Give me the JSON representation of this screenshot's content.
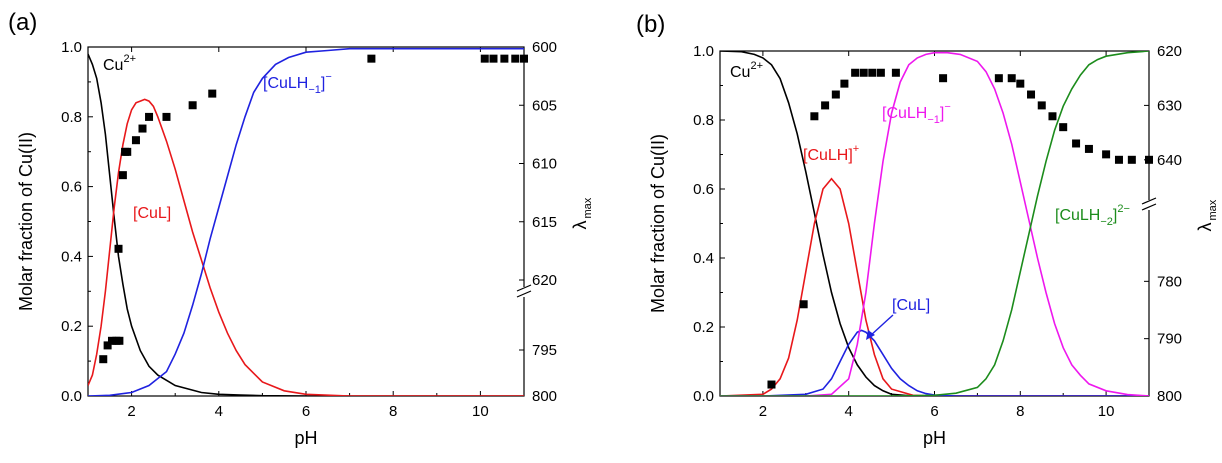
{
  "colors": {
    "black": "#000000",
    "red": "#e8181b",
    "blue": "#1f22e0",
    "magenta": "#ee18ee",
    "green": "#1c8c1c"
  },
  "panel_labels": [
    "(a)",
    "(b)"
  ],
  "chart_data": [
    {
      "type": "line",
      "panel": "(a)",
      "xlabel": "pH",
      "ylabel": "Molar fraction of Cu(II)",
      "y2label": {
        "main": "λ",
        "sub": "max"
      },
      "xlim": [
        1,
        11
      ],
      "ylim": [
        0,
        1
      ],
      "xticks": [
        "2",
        "4",
        "6",
        "8",
        "10"
      ],
      "yticks": [
        "0.0",
        "0.2",
        "0.4",
        "0.6",
        "0.8",
        "1.0"
      ],
      "y2_axis_broken": true,
      "y2_upper_range": [
        600,
        620
      ],
      "y2_upper_ticks": [
        "600",
        "605",
        "610",
        "615",
        "620"
      ],
      "y2_lower_range": [
        790,
        800
      ],
      "y2_lower_ticks": [
        "795",
        "800"
      ],
      "species_labels": [
        {
          "base": "Cu",
          "sup": "2+",
          "sub": "",
          "tail": "",
          "color": "black"
        },
        {
          "base": "[CuL]",
          "sup": "",
          "sub": "",
          "tail": "",
          "color": "red"
        },
        {
          "base": "[CuLH",
          "sub": "−1",
          "tail": "]",
          "sup": "−",
          "color": "blue"
        }
      ],
      "series": [
        {
          "color": "black",
          "x": [
            1,
            1.1,
            1.2,
            1.3,
            1.4,
            1.5,
            1.6,
            1.7,
            1.8,
            1.9,
            2,
            2.2,
            2.4,
            2.6,
            2.8,
            3,
            3.3,
            3.6,
            4,
            4.5,
            5,
            6,
            7,
            8,
            9,
            10,
            11
          ],
          "y": [
            0.98,
            0.95,
            0.91,
            0.84,
            0.75,
            0.63,
            0.51,
            0.4,
            0.32,
            0.25,
            0.2,
            0.13,
            0.085,
            0.06,
            0.045,
            0.03,
            0.02,
            0.01,
            0.005,
            0.003,
            0.001,
            0,
            0,
            0,
            0,
            0,
            0
          ]
        },
        {
          "color": "red",
          "x": [
            1,
            1.1,
            1.2,
            1.3,
            1.4,
            1.5,
            1.6,
            1.7,
            1.8,
            1.9,
            2,
            2.1,
            2.2,
            2.3,
            2.4,
            2.5,
            2.6,
            2.8,
            3,
            3.2,
            3.4,
            3.6,
            3.8,
            4,
            4.2,
            4.4,
            4.6,
            5,
            5.5,
            6,
            7,
            8,
            9,
            10,
            11
          ],
          "y": [
            0.03,
            0.06,
            0.12,
            0.2,
            0.3,
            0.42,
            0.54,
            0.64,
            0.72,
            0.78,
            0.82,
            0.84,
            0.845,
            0.85,
            0.845,
            0.83,
            0.8,
            0.73,
            0.65,
            0.56,
            0.47,
            0.39,
            0.31,
            0.24,
            0.18,
            0.13,
            0.09,
            0.04,
            0.015,
            0.005,
            0,
            0,
            0,
            0,
            0
          ]
        },
        {
          "color": "blue",
          "x": [
            1,
            1.5,
            2,
            2.4,
            2.8,
            3,
            3.2,
            3.4,
            3.6,
            3.8,
            4,
            4.2,
            4.4,
            4.6,
            4.8,
            5,
            5.3,
            5.6,
            6,
            6.5,
            7,
            8,
            9,
            10,
            11
          ],
          "y": [
            0,
            0.002,
            0.01,
            0.03,
            0.07,
            0.12,
            0.18,
            0.26,
            0.35,
            0.45,
            0.54,
            0.63,
            0.72,
            0.8,
            0.87,
            0.91,
            0.95,
            0.97,
            0.985,
            0.99,
            0.995,
            0.995,
            0.995,
            0.995,
            0.995
          ]
        }
      ],
      "lambda_points_upper": {
        "x": [
          1.8,
          1.85,
          1.9,
          2.1,
          2.25,
          2.4,
          2.8,
          3.4,
          3.85,
          7.5,
          10.1,
          10.3,
          10.55,
          10.8,
          11
        ],
        "lambda": [
          611,
          609,
          609,
          608,
          607,
          606,
          606,
          605,
          604,
          601,
          601,
          601,
          601,
          601,
          601
        ]
      },
      "lambda_points_lower": {
        "x": [
          1.7,
          1.35,
          1.45,
          1.55,
          1.65,
          1.72
        ],
        "lambda": [
          784,
          796,
          794.5,
          794,
          794,
          794
        ]
      }
    },
    {
      "type": "line",
      "panel": "(b)",
      "xlabel": "pH",
      "ylabel": "Molar fraction of Cu(II)",
      "y2label": {
        "main": "λ",
        "sub": "max"
      },
      "xlim": [
        1,
        11
      ],
      "ylim": [
        0,
        1
      ],
      "xticks": [
        "2",
        "4",
        "6",
        "8",
        "10"
      ],
      "yticks": [
        "0.0",
        "0.2",
        "0.4",
        "0.6",
        "0.8",
        "1.0"
      ],
      "y2_axis_broken": true,
      "y2_upper_range": [
        620,
        645
      ],
      "y2_upper_ticks": [
        "620",
        "630",
        "640"
      ],
      "y2_lower_range": [
        770,
        800
      ],
      "y2_lower_ticks": [
        "780",
        "790",
        "800"
      ],
      "species_labels": [
        {
          "base": "Cu",
          "sup": "2+",
          "sub": "",
          "tail": "",
          "color": "black"
        },
        {
          "base": "[CuLH]",
          "sup": "+",
          "sub": "",
          "tail": "",
          "color": "red"
        },
        {
          "base": "[CuLH",
          "sub": "−1",
          "tail": "]",
          "sup": "−",
          "color": "magenta"
        },
        {
          "base": "[CuLH",
          "sub": "−2",
          "tail": "]",
          "sup": "2−",
          "color": "green"
        },
        {
          "base": "[CuL]",
          "sup": "",
          "sub": "",
          "tail": "",
          "color": "blue"
        }
      ],
      "series": [
        {
          "color": "black",
          "x": [
            1,
            1.5,
            1.8,
            2,
            2.2,
            2.4,
            2.6,
            2.8,
            3,
            3.2,
            3.4,
            3.6,
            3.8,
            4,
            4.2,
            4.4,
            4.6,
            4.8,
            5,
            5.5,
            6,
            7,
            8,
            9,
            10,
            11
          ],
          "y": [
            1,
            0.998,
            0.99,
            0.98,
            0.96,
            0.92,
            0.85,
            0.76,
            0.65,
            0.53,
            0.41,
            0.3,
            0.21,
            0.14,
            0.09,
            0.055,
            0.03,
            0.015,
            0.005,
            0,
            0,
            0,
            0,
            0,
            0,
            0
          ]
        },
        {
          "color": "red",
          "x": [
            1,
            2,
            2.2,
            2.4,
            2.6,
            2.8,
            3,
            3.2,
            3.4,
            3.6,
            3.8,
            4,
            4.2,
            4.4,
            4.6,
            4.8,
            5,
            5.5,
            6,
            7,
            8,
            9,
            10,
            11
          ],
          "y": [
            0,
            0.005,
            0.02,
            0.05,
            0.11,
            0.22,
            0.36,
            0.5,
            0.6,
            0.63,
            0.6,
            0.5,
            0.36,
            0.22,
            0.12,
            0.05,
            0.02,
            0.002,
            0,
            0,
            0,
            0,
            0,
            0
          ]
        },
        {
          "color": "blue",
          "x": [
            1,
            2,
            3,
            3.4,
            3.6,
            3.8,
            4,
            4.2,
            4.3,
            4.4,
            4.6,
            4.8,
            5,
            5.2,
            5.4,
            5.6,
            5.8,
            6,
            6.5,
            7,
            8,
            9,
            10,
            11
          ],
          "y": [
            0,
            0,
            0.005,
            0.02,
            0.05,
            0.1,
            0.15,
            0.185,
            0.19,
            0.185,
            0.16,
            0.12,
            0.08,
            0.05,
            0.03,
            0.015,
            0.007,
            0.003,
            0,
            0,
            0,
            0,
            0,
            0
          ]
        },
        {
          "color": "magenta",
          "x": [
            1,
            3,
            3.6,
            4,
            4.2,
            4.4,
            4.6,
            4.8,
            5,
            5.2,
            5.4,
            5.6,
            5.8,
            6,
            6.3,
            6.6,
            7,
            7.2,
            7.4,
            7.6,
            7.8,
            8,
            8.2,
            8.4,
            8.6,
            8.8,
            9,
            9.2,
            9.4,
            9.6,
            10,
            10.5,
            11
          ],
          "y": [
            0,
            0,
            0.005,
            0.05,
            0.15,
            0.3,
            0.5,
            0.68,
            0.82,
            0.91,
            0.96,
            0.98,
            0.99,
            0.995,
            0.995,
            0.99,
            0.97,
            0.94,
            0.89,
            0.82,
            0.73,
            0.62,
            0.51,
            0.4,
            0.3,
            0.21,
            0.14,
            0.09,
            0.06,
            0.035,
            0.015,
            0.004,
            0
          ]
        },
        {
          "color": "green",
          "x": [
            1,
            5,
            6,
            6.5,
            7,
            7.2,
            7.4,
            7.6,
            7.8,
            8,
            8.2,
            8.4,
            8.6,
            8.8,
            9,
            9.2,
            9.4,
            9.6,
            9.8,
            10,
            10.5,
            11
          ],
          "y": [
            0,
            0,
            0.002,
            0.008,
            0.025,
            0.05,
            0.09,
            0.16,
            0.25,
            0.36,
            0.47,
            0.58,
            0.68,
            0.77,
            0.84,
            0.89,
            0.93,
            0.96,
            0.975,
            0.985,
            0.995,
            1
          ]
        }
      ],
      "lambda_points_upper": {
        "x": [
          3.2,
          3.45,
          3.7,
          3.9,
          4.15,
          4.35,
          4.55,
          4.75,
          5.1,
          6.2,
          7.5,
          7.8,
          8,
          8.25,
          8.5,
          8.75,
          9,
          9.3,
          9.6,
          10,
          10.3,
          10.6,
          11
        ],
        "lambda": [
          632,
          630,
          628,
          626,
          624,
          624,
          624,
          624,
          624,
          625,
          625,
          625,
          626,
          628,
          630,
          632,
          634,
          637,
          638,
          639,
          640,
          640,
          640
        ]
      },
      "lambda_points_lower": {
        "x": [
          2.2,
          2.95
        ],
        "lambda": [
          798,
          784
        ]
      }
    }
  ]
}
